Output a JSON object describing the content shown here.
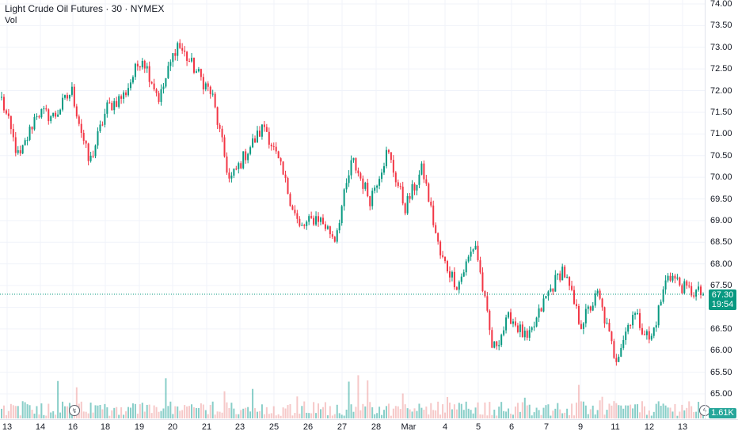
{
  "legend": {
    "title": "Light Crude Oil Futures · 30 · NYMEX",
    "volume_label": "Vol"
  },
  "colors": {
    "up": "#089981",
    "down": "#f23645",
    "up_vol": "#26a69a",
    "down_vol": "#ef9a9a",
    "grid": "#f0f3fa",
    "last_line": "#089981"
  },
  "last_price": {
    "price": 67.3,
    "label": "67.30",
    "countdown": "19:54"
  },
  "volume": {
    "last_label": "1.61K",
    "max": 15000
  },
  "price_axis": {
    "labels": [
      "74.00",
      "73.50",
      "73.00",
      "72.50",
      "72.00",
      "71.50",
      "71.00",
      "70.50",
      "70.00",
      "69.50",
      "69.00",
      "68.50",
      "68.00",
      "67.50",
      "67.00",
      "66.50",
      "66.00",
      "65.50",
      "65.00"
    ]
  },
  "time_axis": {
    "labels": [
      "13",
      "14",
      "16",
      "18",
      "19",
      "20",
      "21",
      "23",
      "25",
      "26",
      "27",
      "28",
      "Mar",
      "4",
      "5",
      "6",
      "7",
      "9",
      "11",
      "12",
      "13"
    ]
  },
  "markers": [
    {
      "icon": "split-arrow-icon",
      "symbol": "↯"
    },
    {
      "icon": "flash-icon",
      "symbol": "ϟ"
    }
  ],
  "chart_data": {
    "type": "candlestick",
    "title": "Light Crude Oil Futures · 30 · NYMEX",
    "ylim": [
      65.0,
      74.0
    ],
    "interval": "30",
    "waypoints": [
      [
        "13",
        71.8
      ],
      [
        "13",
        70.4
      ],
      [
        "14",
        71.5
      ],
      [
        "14",
        71.4
      ],
      [
        "16",
        72.0
      ],
      [
        "16",
        70.3
      ],
      [
        "18",
        71.6
      ],
      [
        "19",
        71.9
      ],
      [
        "19",
        72.8
      ],
      [
        "20",
        71.8
      ],
      [
        "21",
        73.1
      ],
      [
        "21",
        72.5
      ],
      [
        "23",
        71.9
      ],
      [
        "23",
        69.9
      ],
      [
        "25",
        70.6
      ],
      [
        "25",
        71.2
      ],
      [
        "26",
        70.1
      ],
      [
        "26",
        68.8
      ],
      [
        "27",
        69.1
      ],
      [
        "27",
        68.6
      ],
      [
        "28",
        70.4
      ],
      [
        "28",
        69.5
      ],
      [
        "Mar",
        70.6
      ],
      [
        "Mar",
        69.3
      ],
      [
        "4",
        70.2
      ],
      [
        "4",
        68.2
      ],
      [
        "5",
        67.5
      ],
      [
        "5",
        68.5
      ],
      [
        "6",
        66.0
      ],
      [
        "6",
        66.8
      ],
      [
        "7",
        66.2
      ],
      [
        "7",
        67.2
      ],
      [
        "9",
        67.9
      ],
      [
        "9",
        66.6
      ],
      [
        "11",
        67.3
      ],
      [
        "11",
        65.8
      ],
      [
        "12",
        66.9
      ],
      [
        "12",
        66.2
      ],
      [
        "13",
        67.8
      ],
      [
        "13",
        67.4
      ],
      [
        "13",
        67.3
      ]
    ]
  }
}
